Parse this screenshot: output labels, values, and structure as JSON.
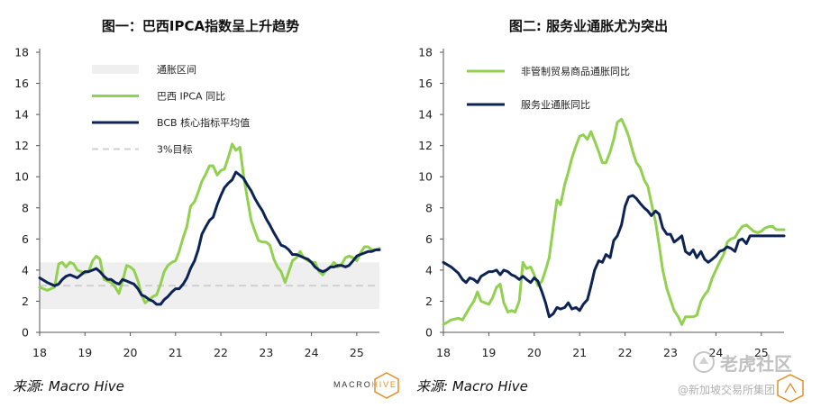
{
  "charts": [
    {
      "title": "图一：巴西IPCA指数呈上升趋势",
      "source": "来源: Macro Hive"
    },
    {
      "title": "图二: 服务业通胀尤为突出",
      "source": "来源: Macro Hive"
    }
  ],
  "logo": {
    "brand_a": "MACRO",
    "brand_b": "HIVE"
  },
  "watermark": {
    "main": "老虎社区",
    "sub": "@新加坡交易所集团"
  },
  "colors": {
    "green": "#92d050",
    "navy": "#0d2353",
    "band": "#efefef",
    "dashed": "#d0d0d0"
  },
  "chart_data": [
    {
      "type": "line",
      "title": "图一：巴西IPCA指数呈上升趋势",
      "x_ticks": [
        "18",
        "19",
        "20",
        "21",
        "22",
        "23",
        "24",
        "25"
      ],
      "y_ticks": [
        "0",
        "2",
        "4",
        "6",
        "8",
        "10",
        "12",
        "14",
        "16",
        "18"
      ],
      "ylim": [
        0,
        18
      ],
      "xlim": [
        18,
        25.5
      ],
      "band": {
        "label": "通胀区间",
        "low": 1.5,
        "high": 4.5
      },
      "target": {
        "label": "3%目标",
        "value": 3
      },
      "series": [
        {
          "name": "巴西 IPCA 同比",
          "color": "#92d050",
          "x": [
            18.0,
            18.17,
            18.33,
            18.42,
            18.5,
            18.58,
            18.67,
            18.75,
            18.83,
            19.0,
            19.08,
            19.17,
            19.25,
            19.33,
            19.42,
            19.5,
            19.58,
            19.67,
            19.75,
            19.83,
            19.92,
            20.0,
            20.08,
            20.17,
            20.25,
            20.33,
            20.42,
            20.5,
            20.58,
            20.67,
            20.75,
            20.83,
            20.92,
            21.0,
            21.08,
            21.17,
            21.25,
            21.33,
            21.42,
            21.5,
            21.58,
            21.67,
            21.75,
            21.83,
            21.92,
            22.0,
            22.08,
            22.17,
            22.25,
            22.33,
            22.42,
            22.5,
            22.58,
            22.67,
            22.75,
            22.83,
            22.92,
            23.0,
            23.08,
            23.17,
            23.25,
            23.33,
            23.42,
            23.5,
            23.58,
            23.67,
            23.75,
            23.83,
            23.92,
            24.0,
            24.08,
            24.17,
            24.25,
            24.33,
            24.42,
            24.5,
            24.58,
            24.67,
            24.75,
            24.83,
            24.92,
            25.0,
            25.08,
            25.17,
            25.25,
            25.33,
            25.42,
            25.5
          ],
          "values": [
            2.9,
            2.7,
            2.9,
            4.4,
            4.5,
            4.2,
            4.5,
            4.4,
            4.0,
            3.8,
            3.9,
            4.6,
            4.9,
            4.7,
            3.4,
            3.3,
            3.2,
            2.9,
            2.5,
            3.3,
            4.3,
            4.2,
            4.0,
            3.3,
            2.4,
            1.9,
            2.1,
            2.3,
            2.4,
            3.1,
            3.9,
            4.3,
            4.5,
            4.6,
            5.2,
            6.1,
            6.8,
            8.1,
            8.4,
            9.0,
            9.7,
            10.2,
            10.7,
            10.7,
            10.1,
            10.4,
            10.5,
            11.3,
            12.1,
            11.7,
            11.9,
            10.1,
            8.7,
            7.2,
            6.5,
            5.9,
            5.8,
            5.8,
            5.6,
            4.7,
            4.2,
            3.9,
            3.2,
            3.9,
            4.6,
            4.8,
            5.2,
            4.8,
            4.6,
            4.5,
            4.5,
            3.9,
            3.7,
            4.0,
            4.2,
            4.5,
            4.2,
            4.4,
            4.8,
            4.9,
            4.8,
            4.6,
            5.1,
            5.5,
            5.5,
            5.3,
            5.3,
            5.4
          ]
        },
        {
          "name": "BCB 核心指标平均值",
          "color": "#0d2353",
          "x": [
            18.0,
            18.17,
            18.33,
            18.42,
            18.5,
            18.58,
            18.67,
            18.75,
            18.83,
            19.0,
            19.08,
            19.17,
            19.25,
            19.33,
            19.42,
            19.5,
            19.58,
            19.67,
            19.75,
            19.83,
            19.92,
            20.0,
            20.08,
            20.17,
            20.25,
            20.33,
            20.42,
            20.5,
            20.58,
            20.67,
            20.75,
            20.83,
            20.92,
            21.0,
            21.08,
            21.17,
            21.25,
            21.33,
            21.42,
            21.5,
            21.58,
            21.67,
            21.75,
            21.83,
            21.92,
            22.0,
            22.08,
            22.17,
            22.25,
            22.33,
            22.42,
            22.5,
            22.58,
            22.67,
            22.75,
            22.83,
            22.92,
            23.0,
            23.08,
            23.17,
            23.25,
            23.33,
            23.42,
            23.5,
            23.58,
            23.67,
            23.75,
            23.83,
            23.92,
            24.0,
            24.08,
            24.17,
            24.25,
            24.33,
            24.42,
            24.5,
            24.58,
            24.67,
            24.75,
            24.83,
            24.92,
            25.0,
            25.08,
            25.17,
            25.25,
            25.33,
            25.42,
            25.5
          ],
          "values": [
            3.5,
            3.2,
            3.0,
            3.1,
            3.4,
            3.6,
            3.7,
            3.6,
            3.5,
            3.9,
            3.9,
            4.0,
            4.1,
            3.9,
            3.6,
            3.4,
            3.4,
            3.2,
            3.1,
            3.4,
            3.3,
            3.2,
            3.1,
            2.8,
            2.4,
            2.3,
            2.1,
            2.0,
            1.8,
            1.8,
            2.1,
            2.3,
            2.6,
            2.8,
            2.8,
            3.1,
            3.5,
            4.1,
            4.6,
            5.3,
            6.3,
            6.8,
            7.2,
            7.4,
            8.2,
            8.8,
            9.3,
            9.6,
            9.8,
            10.3,
            10.1,
            9.9,
            9.5,
            9.1,
            8.6,
            8.2,
            7.8,
            7.3,
            6.9,
            6.4,
            6.0,
            5.6,
            5.5,
            5.3,
            5.0,
            5.0,
            4.9,
            4.8,
            4.7,
            4.5,
            4.2,
            4.0,
            3.9,
            4.0,
            4.2,
            4.2,
            4.3,
            4.3,
            4.2,
            4.3,
            4.6,
            4.9,
            5.0,
            5.1,
            5.2,
            5.2,
            5.3,
            5.3
          ]
        }
      ]
    },
    {
      "type": "line",
      "title": "图二: 服务业通胀尤为突出",
      "x_ticks": [
        "18",
        "19",
        "20",
        "21",
        "22",
        "23",
        "24",
        "25"
      ],
      "y_ticks": [
        "0",
        "2",
        "4",
        "6",
        "8",
        "10",
        "12",
        "14",
        "16",
        "18"
      ],
      "ylim": [
        0,
        18
      ],
      "xlim": [
        18,
        25.5
      ],
      "series": [
        {
          "name": "非管制贸易商品通胀同比",
          "color": "#92d050",
          "x": [
            18.0,
            18.17,
            18.33,
            18.42,
            18.5,
            18.58,
            18.67,
            18.75,
            18.83,
            19.0,
            19.08,
            19.17,
            19.25,
            19.33,
            19.42,
            19.5,
            19.58,
            19.67,
            19.75,
            19.83,
            19.92,
            20.0,
            20.08,
            20.17,
            20.25,
            20.33,
            20.42,
            20.5,
            20.58,
            20.67,
            20.75,
            20.83,
            20.92,
            21.0,
            21.08,
            21.17,
            21.25,
            21.33,
            21.42,
            21.5,
            21.58,
            21.67,
            21.75,
            21.83,
            21.92,
            22.0,
            22.08,
            22.17,
            22.25,
            22.33,
            22.42,
            22.5,
            22.58,
            22.67,
            22.75,
            22.83,
            22.92,
            23.0,
            23.08,
            23.17,
            23.25,
            23.33,
            23.42,
            23.5,
            23.58,
            23.67,
            23.75,
            23.83,
            23.92,
            24.0,
            24.08,
            24.17,
            24.25,
            24.33,
            24.42,
            24.5,
            24.58,
            24.67,
            24.75,
            24.83,
            24.92,
            25.0,
            25.08,
            25.17,
            25.25,
            25.33,
            25.42,
            25.5
          ],
          "values": [
            0.5,
            0.8,
            0.9,
            0.8,
            1.2,
            1.6,
            2.0,
            2.6,
            2.0,
            1.8,
            2.2,
            2.9,
            3.1,
            1.9,
            1.3,
            1.4,
            1.3,
            2.0,
            4.5,
            4.1,
            4.2,
            3.7,
            3.0,
            3.3,
            4.0,
            4.8,
            6.8,
            8.5,
            8.2,
            9.5,
            10.3,
            11.2,
            12.0,
            12.6,
            12.7,
            12.4,
            12.9,
            12.3,
            11.6,
            10.9,
            10.9,
            11.6,
            12.4,
            13.5,
            13.7,
            13.2,
            12.6,
            11.6,
            10.9,
            10.6,
            9.8,
            9.4,
            8.3,
            7.1,
            5.6,
            4.0,
            2.8,
            2.1,
            1.4,
            1.0,
            0.5,
            1.0,
            1.0,
            1.0,
            1.1,
            2.0,
            2.4,
            2.7,
            3.5,
            4.0,
            4.5,
            5.0,
            5.8,
            6.0,
            6.1,
            6.5,
            6.8,
            6.9,
            6.7,
            6.5,
            6.4,
            6.5,
            6.7,
            6.8,
            6.8,
            6.6,
            6.6,
            6.6
          ]
        },
        {
          "name": "服务业通胀同比",
          "color": "#0d2353",
          "x": [
            18.0,
            18.17,
            18.33,
            18.42,
            18.5,
            18.58,
            18.67,
            18.75,
            18.83,
            19.0,
            19.08,
            19.17,
            19.25,
            19.33,
            19.42,
            19.5,
            19.58,
            19.67,
            19.75,
            19.83,
            19.92,
            20.0,
            20.08,
            20.17,
            20.25,
            20.33,
            20.42,
            20.5,
            20.58,
            20.67,
            20.75,
            20.83,
            20.92,
            21.0,
            21.08,
            21.17,
            21.25,
            21.33,
            21.42,
            21.5,
            21.58,
            21.67,
            21.75,
            21.83,
            21.92,
            22.0,
            22.08,
            22.17,
            22.25,
            22.33,
            22.42,
            22.5,
            22.58,
            22.67,
            22.75,
            22.83,
            22.92,
            23.0,
            23.08,
            23.17,
            23.25,
            23.33,
            23.42,
            23.5,
            23.58,
            23.67,
            23.75,
            23.83,
            23.92,
            24.0,
            24.08,
            24.17,
            24.25,
            24.33,
            24.42,
            24.5,
            24.58,
            24.67,
            24.75,
            24.83,
            24.92,
            25.0,
            25.08,
            25.17,
            25.25,
            25.33,
            25.42,
            25.5
          ],
          "values": [
            4.5,
            4.2,
            3.8,
            3.4,
            3.2,
            3.5,
            3.4,
            3.2,
            3.6,
            3.9,
            3.9,
            4.0,
            3.7,
            4.0,
            3.9,
            3.7,
            3.6,
            3.4,
            3.6,
            3.4,
            3.2,
            3.5,
            3.3,
            2.6,
            1.9,
            1.0,
            1.2,
            1.6,
            1.5,
            1.6,
            1.9,
            1.5,
            1.6,
            1.4,
            1.8,
            2.1,
            3.0,
            4.0,
            4.6,
            4.5,
            5.0,
            4.8,
            5.9,
            6.2,
            6.9,
            8.1,
            8.7,
            8.8,
            8.6,
            8.3,
            8.0,
            7.8,
            7.5,
            7.8,
            7.6,
            6.7,
            6.3,
            6.3,
            5.8,
            6.0,
            6.2,
            5.2,
            5.0,
            5.3,
            4.8,
            5.2,
            4.7,
            4.5,
            4.7,
            4.9,
            5.2,
            5.3,
            5.5,
            5.4,
            5.2,
            5.9,
            6.0,
            5.7,
            6.2,
            6.2,
            6.2,
            6.2,
            6.2,
            6.2,
            6.2,
            6.2,
            6.2,
            6.2
          ]
        }
      ]
    }
  ]
}
